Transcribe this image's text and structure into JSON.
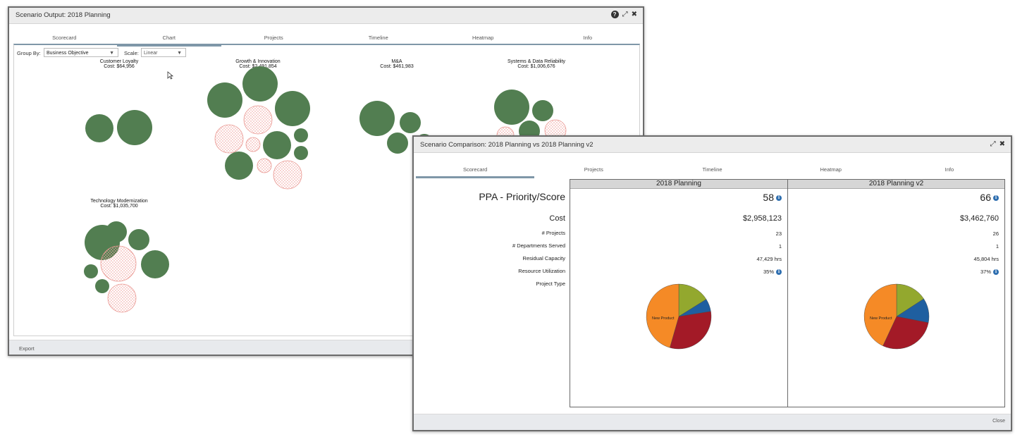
{
  "window1": {
    "title": "Scenario Output: 2018 Planning",
    "tabs": [
      "Scorecard",
      "Chart",
      "Projects",
      "Timeline",
      "Heatmap",
      "Info"
    ],
    "active_tab": "Chart",
    "group_by_label": "Group By:",
    "group_by_value": "Business Objective",
    "scale_label": "Scale:",
    "scale_value": "Linear",
    "groups": [
      {
        "name": "Customer Loyalty",
        "cost": "Cost: $64,956"
      },
      {
        "name": "Growth & Innovation",
        "cost": "Cost: $2,491,854"
      },
      {
        "name": "M&A",
        "cost": "Cost: $461,983"
      },
      {
        "name": "Systems & Data Reliability",
        "cost": "Cost: $1,006,676"
      },
      {
        "name": "Technology Modernization",
        "cost": "Cost: $1,035,700"
      }
    ],
    "footer_export": "Export"
  },
  "window2": {
    "title": "Scenario Comparison: 2018 Planning vs 2018 Planning v2",
    "tabs": [
      "Scorecard",
      "Projects",
      "Timeline",
      "Heatmap",
      "Info"
    ],
    "active_tab": "Scorecard",
    "rows": {
      "ppa": "PPA - Priority/Score",
      "cost": "Cost",
      "projects": "# Projects",
      "departments": "# Departments Served",
      "residual": "Residual Capacity",
      "utilization": "Resource Utilization",
      "project_type": "Project Type"
    },
    "scenarios": [
      {
        "name": "2018 Planning",
        "ppa": "58",
        "cost": "$2,958,123",
        "projects": "23",
        "departments": "1",
        "residual": "47,429 hrs",
        "utilization": "35%"
      },
      {
        "name": "2018 Planning v2",
        "ppa": "66",
        "cost": "$3,462,760",
        "projects": "26",
        "departments": "1",
        "residual": "45,804 hrs",
        "utilization": "37%"
      }
    ],
    "pie_label": "New Product",
    "footer_close": "Close"
  },
  "colors": {
    "bubble_green": "#527e51",
    "bubble_pink_stroke": "#e9958f",
    "tab_active": "#7f97a8",
    "pie_orange": "#f58a26",
    "pie_red": "#a31a27",
    "pie_blue": "#1f5fa0",
    "pie_olive": "#93a82e"
  }
}
